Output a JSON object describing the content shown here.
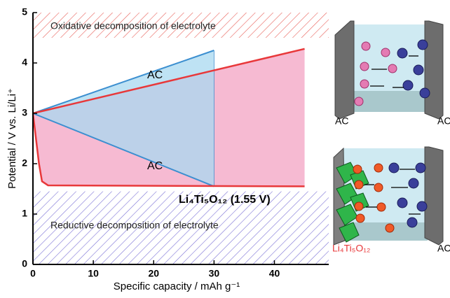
{
  "chart_data": {
    "type": "line",
    "x_label": "Specific capacity / mAh g⁻¹",
    "y_label": "Potential / V vs. Li/Li⁺",
    "xlim": [
      0,
      49
    ],
    "ylim": [
      0,
      5
    ],
    "xticks": [
      0,
      10,
      20,
      30,
      40
    ],
    "yticks": [
      0,
      1,
      2,
      3,
      4,
      5
    ],
    "series": [
      {
        "name": "AC",
        "color": "#3c8fd0",
        "fill": "#a8d8f0",
        "x": [
          0,
          30
        ],
        "values": [
          3,
          4.25
        ]
      },
      {
        "name": "AC",
        "color": "#3c8fd0",
        "x": [
          0,
          30
        ],
        "values": [
          3,
          1.55
        ]
      },
      {
        "name": "Li₄Ti₅O₁₂ (1.55 V)",
        "color": "#e8383a",
        "x": [
          0,
          0.5,
          1,
          1.5,
          2.5,
          45
        ],
        "values": [
          3,
          2.5,
          2.0,
          1.65,
          1.57,
          1.55
        ]
      },
      {
        "color": "#e8383a",
        "fill": "#f3a3c3",
        "x": [
          0,
          45
        ],
        "values": [
          3,
          4.28
        ]
      }
    ],
    "bands": [
      {
        "label": "Oxidative decomposition of electrolyte",
        "range": [
          4.5,
          5
        ],
        "color": "#e8605a"
      },
      {
        "label": "Reductive decomposition of electrolyte",
        "range": [
          0,
          1.45
        ],
        "color": "#7c72d6"
      }
    ]
  },
  "diagram": {
    "panels": [
      {
        "left": "AC",
        "right": "AC"
      },
      {
        "left": "Li₄Ti₅O₁₂",
        "right": "AC"
      }
    ]
  }
}
